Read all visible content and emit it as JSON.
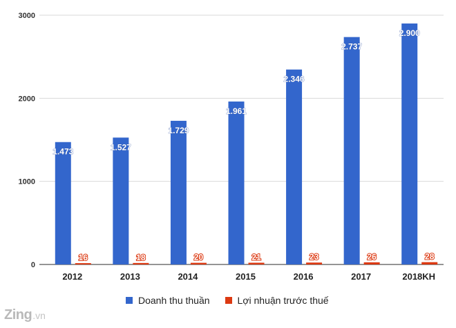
{
  "chart_data": {
    "type": "bar",
    "categories": [
      "2012",
      "2013",
      "2014",
      "2015",
      "2016",
      "2017",
      "2018KH"
    ],
    "series": [
      {
        "name": "Doanh thu thuần",
        "color": "#3366cc",
        "values": [
          1473,
          1527,
          1729,
          1961,
          2346,
          2737,
          2900
        ],
        "labels": [
          "1.473",
          "1.527",
          "1.729",
          "1.961",
          "2.346",
          "2.737",
          "2.900"
        ]
      },
      {
        "name": "Lợi nhuận trước thuế",
        "color": "#dc3912",
        "values": [
          16,
          18,
          20,
          21,
          23,
          26,
          28
        ],
        "labels": [
          "16",
          "18",
          "20",
          "21",
          "23",
          "26",
          "28"
        ]
      }
    ],
    "yticks": [
      "0",
      "1000",
      "2000",
      "3000"
    ],
    "ylim": [
      0,
      3000
    ],
    "grid": true,
    "legend_position": "bottom"
  },
  "legend": {
    "items": [
      "Doanh thu thuần",
      "Lợi nhuận trước thuế"
    ]
  },
  "watermark": {
    "main": "Zing",
    "sub": ".vn"
  }
}
